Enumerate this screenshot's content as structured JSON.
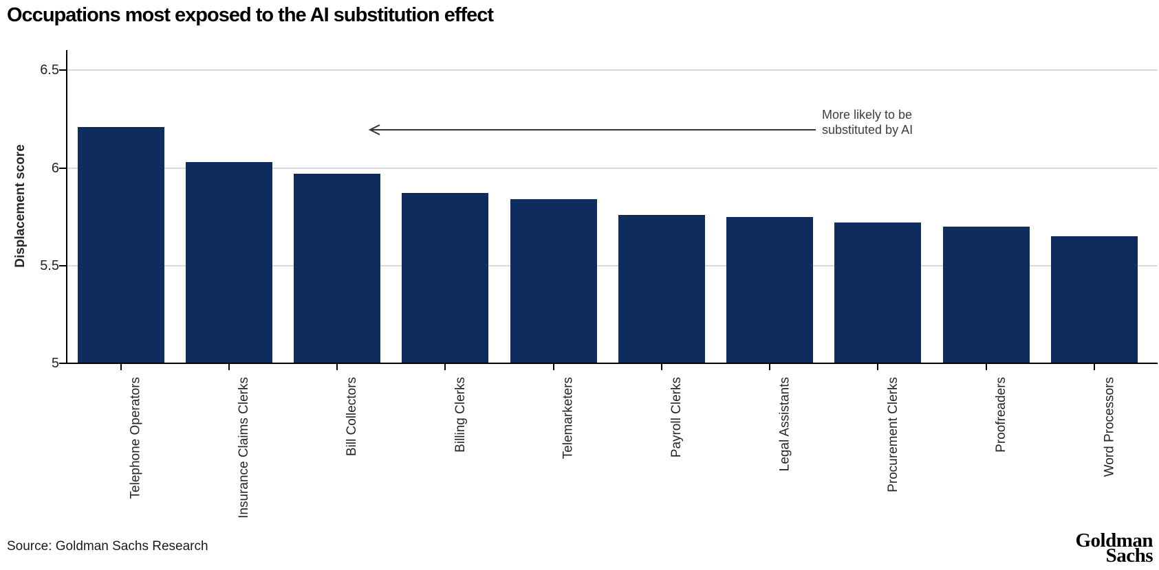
{
  "chart_data": {
    "type": "bar",
    "title": "Occupations most exposed to the AI substitution effect",
    "xlabel": "",
    "ylabel": "Displacement score",
    "categories": [
      "Telephone Operators",
      "Insurance Claims Clerks",
      "Bill Collectors",
      "Billing Clerks",
      "Telemarketers",
      "Payroll Clerks",
      "Legal Assistants",
      "Procurement Clerks",
      "Proofreaders",
      "Word Processors"
    ],
    "values": [
      6.21,
      6.03,
      5.97,
      5.87,
      5.84,
      5.76,
      5.75,
      5.72,
      5.7,
      5.65
    ],
    "ylim": [
      5,
      6.6
    ],
    "yticks": [
      5,
      5.5,
      6,
      6.5
    ],
    "grid": "horizontal",
    "legend": "none",
    "bar_color": "#0e2d5e",
    "gridline_color": "#d9d9d9",
    "annotation": {
      "text_lines": [
        "More likely to be",
        "substituted by AI"
      ],
      "arrow_direction": "left",
      "arrow_color": "#333333"
    }
  },
  "footer": {
    "source": "Source: Goldman Sachs Research",
    "logo_line1": "Goldman",
    "logo_line2": "Sachs"
  }
}
